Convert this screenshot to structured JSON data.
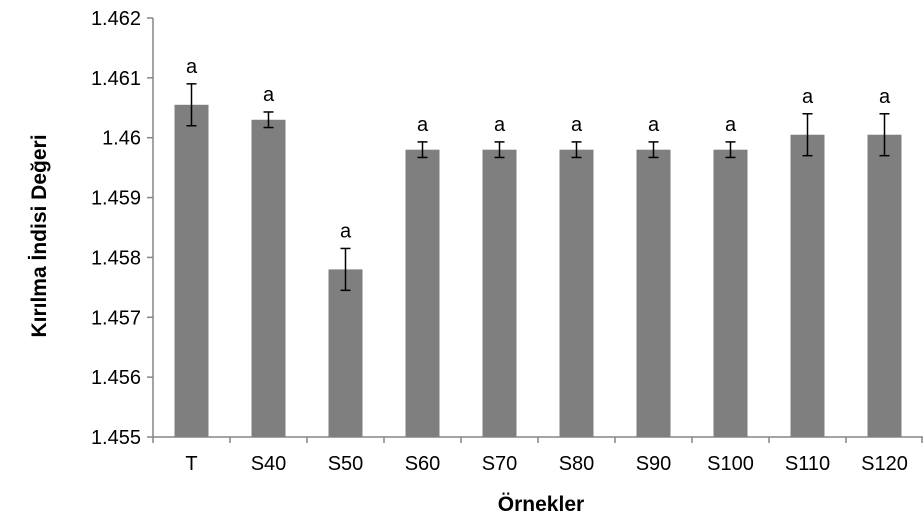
{
  "chart_data": {
    "type": "bar",
    "title": "",
    "xlabel": "Örnekler",
    "ylabel": "Kırılma İndisi Değeri",
    "ylim": [
      1.455,
      1.462
    ],
    "yticks": [
      1.455,
      1.456,
      1.457,
      1.458,
      1.459,
      1.46,
      1.461,
      1.462
    ],
    "ytick_labels": [
      "1.455",
      "1.456",
      "1.457",
      "1.458",
      "1.459",
      "1.46",
      "1.461",
      "1.462"
    ],
    "categories": [
      "T",
      "S40",
      "S50",
      "S60",
      "S70",
      "S80",
      "S90",
      "S100",
      "S110",
      "S120"
    ],
    "values": [
      1.46055,
      1.4603,
      1.4578,
      1.4598,
      1.4598,
      1.4598,
      1.4598,
      1.4598,
      1.46005,
      1.46005
    ],
    "errors": [
      0.00035,
      0.00013,
      0.00035,
      0.00013,
      0.00013,
      0.00013,
      0.00013,
      0.00013,
      0.00035,
      0.00035
    ],
    "data_labels": [
      "a",
      "a",
      "a",
      "a",
      "a",
      "a",
      "a",
      "a",
      "a",
      "a"
    ],
    "bar_color": "#7f7f7f",
    "grid": false,
    "legend": "none"
  }
}
